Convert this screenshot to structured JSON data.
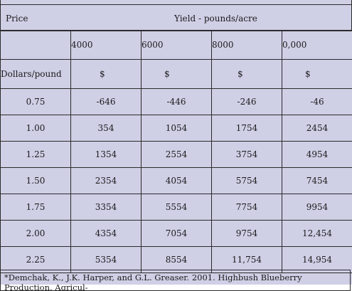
{
  "header": {
    "price_label": "Price",
    "yield_label": "Yield - pounds/acre"
  },
  "columns": [
    "4000",
    "6000",
    "8000",
    "0,000"
  ],
  "units_row": {
    "label": "Dollars/pound",
    "units": [
      "$",
      "$",
      "$",
      "$"
    ]
  },
  "rows": [
    {
      "price": "0.75",
      "values": [
        "-646",
        "-446",
        "-246",
        "-46"
      ]
    },
    {
      "price": "1.00",
      "values": [
        "354",
        "1054",
        "1754",
        "2454"
      ]
    },
    {
      "price": "1.25",
      "values": [
        "1354",
        "2554",
        "3754",
        "4954"
      ]
    },
    {
      "price": "1.50",
      "values": [
        "2354",
        "4054",
        "5754",
        "7454"
      ]
    },
    {
      "price": "1.75",
      "values": [
        "3354",
        "5554",
        "7754",
        "9954"
      ]
    },
    {
      "price": "2.00",
      "values": [
        "4354",
        "7054",
        "9754",
        "12,454"
      ]
    },
    {
      "price": "2.25",
      "values": [
        "5354",
        "8554",
        "11,754",
        "14,954"
      ]
    }
  ],
  "footnote": "*Demchak, K., J.K. Harper, and G.L. Greaser.  2001.  Highbush Blueberry Production.  Agricul-"
}
